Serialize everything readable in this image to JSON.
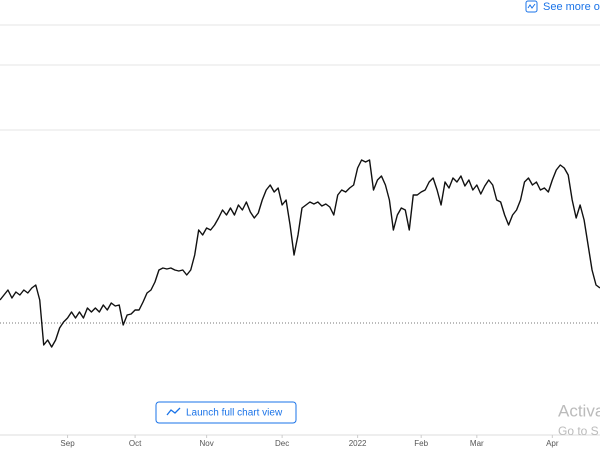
{
  "header": {
    "link": "See more on"
  },
  "chart_data": {
    "type": "line",
    "color": "#111111",
    "values": [
      135,
      140,
      145,
      137,
      143,
      140,
      145,
      142,
      147,
      150,
      135,
      90,
      95,
      88,
      95,
      107,
      113,
      117,
      123,
      117,
      123,
      117,
      127,
      123,
      127,
      123,
      130,
      125,
      132,
      129,
      130,
      110,
      120,
      121,
      125,
      125,
      133,
      142,
      145,
      153,
      165,
      167,
      166,
      167,
      165,
      164,
      165,
      160,
      165,
      180,
      205,
      200,
      207,
      205,
      210,
      217,
      225,
      220,
      227,
      220,
      230,
      225,
      233,
      223,
      217,
      222,
      235,
      245,
      250,
      243,
      247,
      230,
      235,
      210,
      180,
      200,
      227,
      230,
      233,
      231,
      233,
      229,
      231,
      228,
      220,
      240,
      245,
      243,
      247,
      250,
      267,
      275,
      273,
      275,
      245,
      255,
      259,
      250,
      235,
      205,
      220,
      227,
      225,
      205,
      240,
      240,
      243,
      245,
      253,
      257,
      245,
      230,
      253,
      247,
      257,
      253,
      259,
      249,
      255,
      245,
      250,
      241,
      249,
      255,
      250,
      235,
      233,
      220,
      210,
      220,
      225,
      235,
      253,
      257,
      250,
      253,
      245,
      247,
      243,
      255,
      265,
      270,
      267,
      260,
      235,
      217,
      230,
      215,
      190,
      165,
      150,
      147
    ],
    "xlim": [
      0,
      151
    ],
    "ylim": [
      0,
      435
    ],
    "baseline": 112,
    "xticks": [
      {
        "value": 17,
        "label": "Sep"
      },
      {
        "value": 34,
        "label": "Oct"
      },
      {
        "value": 52,
        "label": "Nov"
      },
      {
        "value": 71,
        "label": "Dec"
      },
      {
        "value": 90,
        "label": "2022"
      },
      {
        "value": 106,
        "label": "Feb"
      },
      {
        "value": 120,
        "label": "Mar"
      },
      {
        "value": 139,
        "label": "Apr"
      }
    ]
  },
  "button": {
    "label": "Launch full chart view"
  },
  "watermark": {
    "line1": "Activat",
    "line2": "Go to S"
  }
}
